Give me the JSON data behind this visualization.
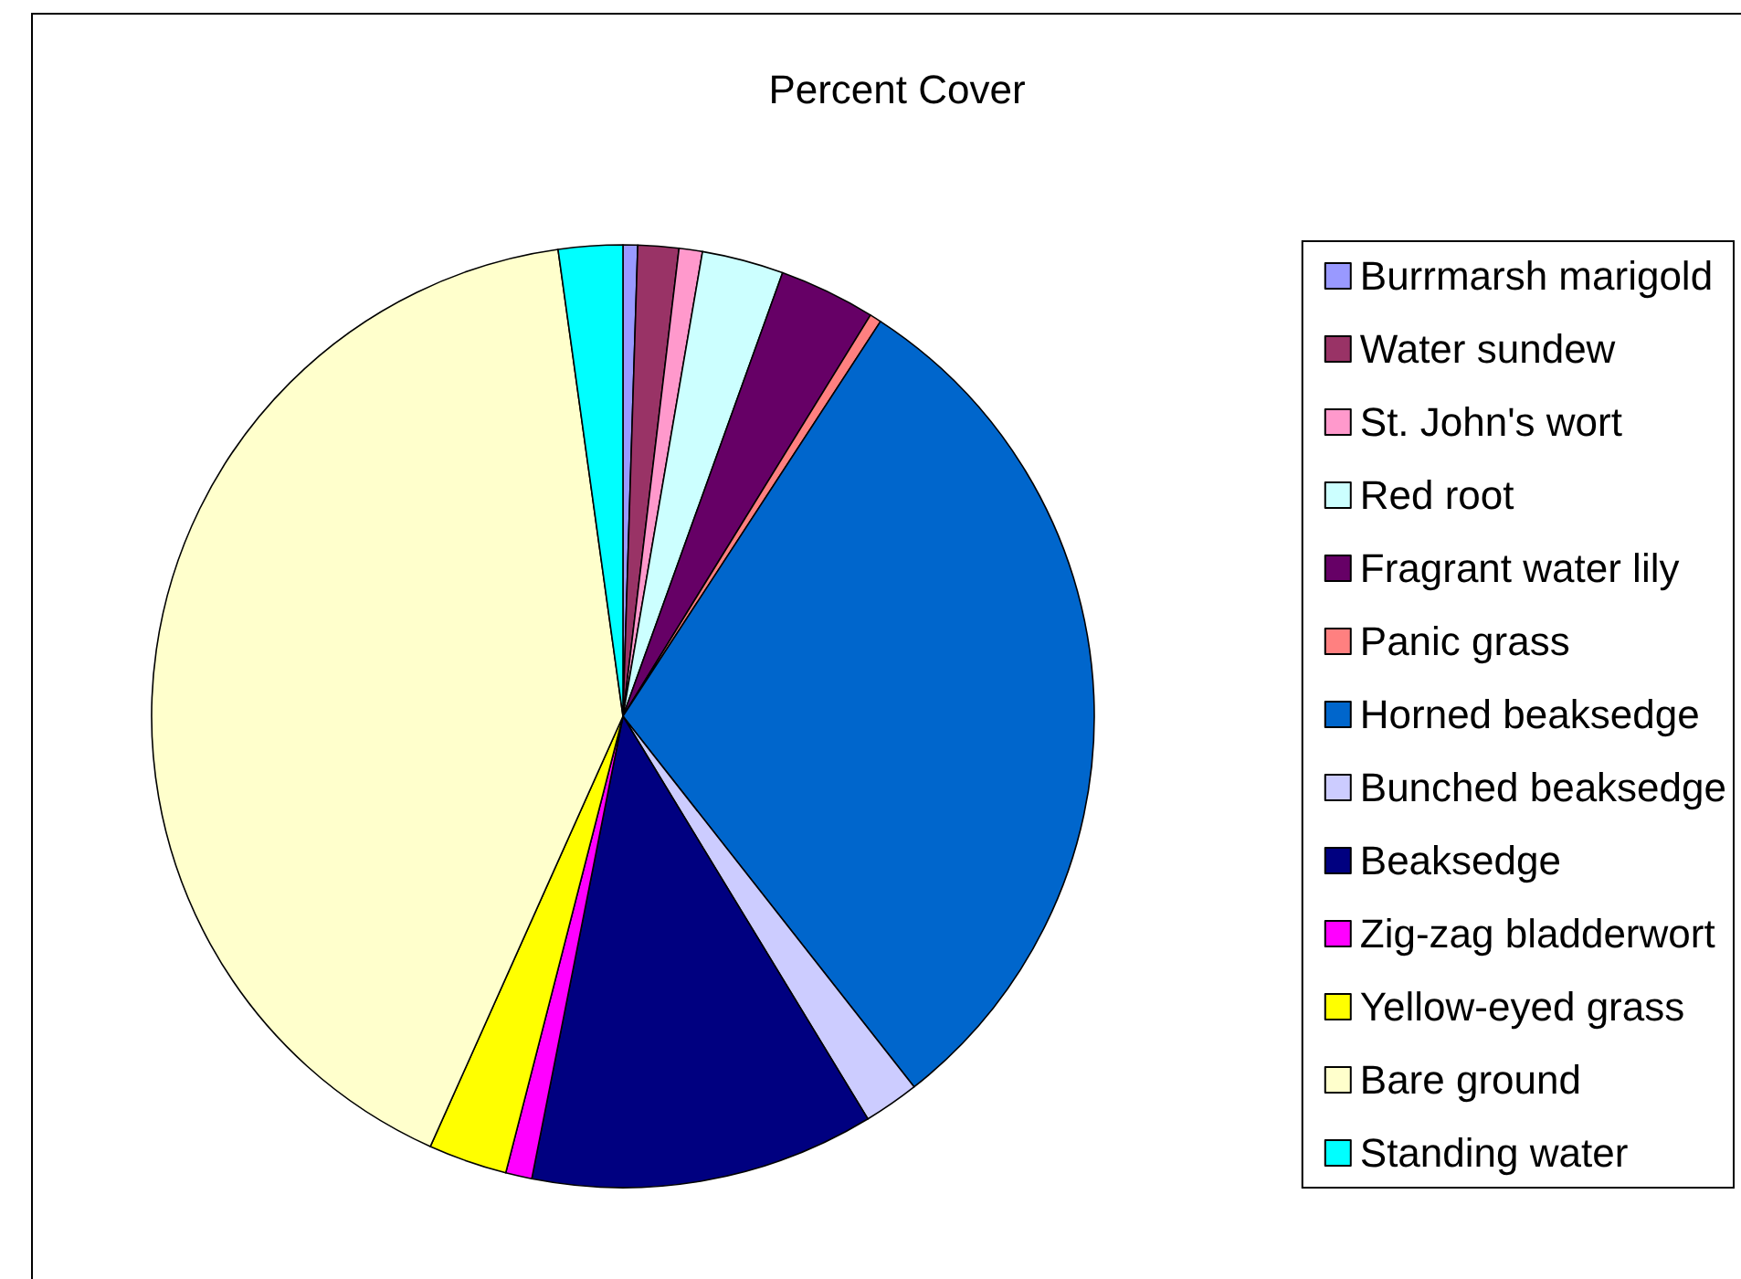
{
  "chart_data": {
    "type": "pie",
    "title": "Percent Cover",
    "categories": [
      "Burrmarsh marigold",
      "Water sundew",
      "St. John's wort",
      "Red root",
      "Fragrant water lily",
      "Panic grass",
      "Horned beaksedge",
      "Bunched beaksedge",
      "Beaksedge",
      "Zig-zag bladderwort",
      "Yellow-eyed grass",
      "Bare ground",
      "Standing water"
    ],
    "values": [
      0.5,
      1.4,
      0.8,
      2.8,
      3.3,
      0.4,
      30.2,
      1.9,
      11.8,
      0.9,
      2.7,
      41.1,
      2.2
    ],
    "colors": [
      "#9999ff",
      "#993366",
      "#ff99cc",
      "#ccffff",
      "#660066",
      "#ff8080",
      "#0066cc",
      "#ccccff",
      "#000080",
      "#ff00ff",
      "#ffff00",
      "#ffffcc",
      "#00ffff"
    ],
    "legend": "right"
  }
}
